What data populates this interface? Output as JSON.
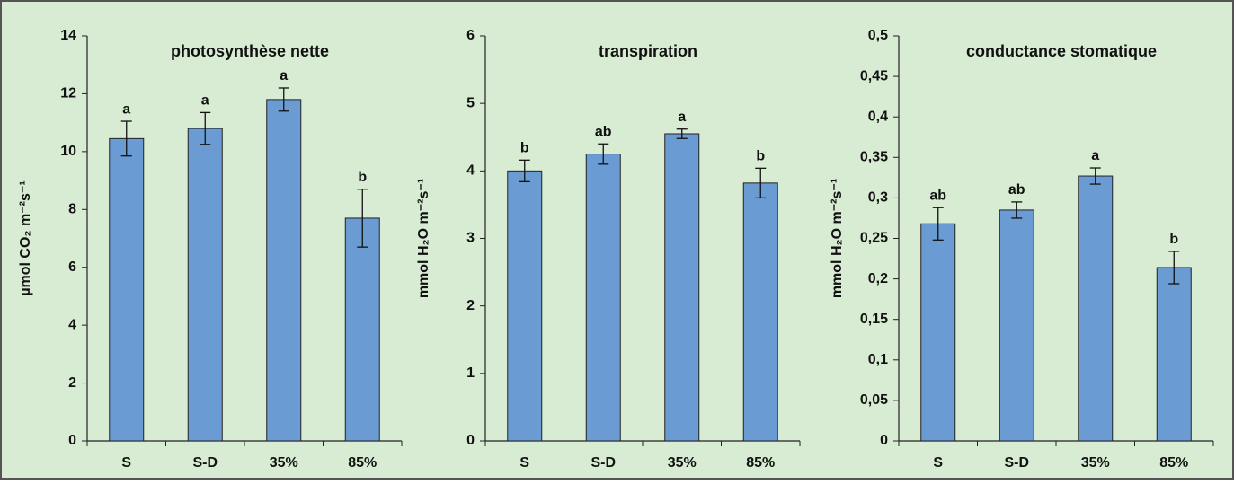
{
  "chart_data": [
    {
      "type": "bar",
      "title": "photosynthèse nette",
      "ylabel": "µmol CO₂ m⁻²s⁻¹",
      "categories": [
        "S",
        "S-D",
        "35%",
        "85%"
      ],
      "values": [
        10.45,
        10.8,
        11.8,
        7.7
      ],
      "errors": [
        0.6,
        0.55,
        0.4,
        1.0
      ],
      "letters": [
        "a",
        "a",
        "a",
        "b"
      ],
      "color": "#6a9bd3",
      "ylim": [
        0,
        14
      ],
      "yticks": [
        0,
        2,
        4,
        6,
        8,
        10,
        12,
        14
      ]
    },
    {
      "type": "bar",
      "title": "transpiration",
      "ylabel": "mmol H₂O m⁻²s⁻¹",
      "categories": [
        "S",
        "S-D",
        "35%",
        "85%"
      ],
      "values": [
        4.0,
        4.25,
        4.55,
        3.82
      ],
      "errors": [
        0.16,
        0.15,
        0.07,
        0.22
      ],
      "letters": [
        "b",
        "ab",
        "a",
        "b"
      ],
      "color": "#6a9bd3",
      "ylim": [
        0,
        6
      ],
      "yticks": [
        0,
        1,
        2,
        3,
        4,
        5,
        6
      ]
    },
    {
      "type": "bar",
      "title": "conductance stomatique",
      "ylabel": "mmol H₂O m⁻²s⁻¹",
      "categories": [
        "S",
        "S-D",
        "35%",
        "85%"
      ],
      "values": [
        0.268,
        0.285,
        0.327,
        0.214
      ],
      "errors": [
        0.02,
        0.01,
        0.01,
        0.02
      ],
      "letters": [
        "ab",
        "ab",
        "a",
        "b"
      ],
      "color": "#6a9bd3",
      "ylim": [
        0,
        0.5
      ],
      "yticks": [
        0,
        {
          "value": 0.05,
          "label": "0,05"
        },
        {
          "value": 0.1,
          "label": "0,1"
        },
        {
          "value": 0.15,
          "label": "0,15"
        },
        {
          "value": 0.2,
          "label": "0,2"
        },
        {
          "value": 0.25,
          "label": "0,25"
        },
        {
          "value": 0.3,
          "label": "0,3"
        },
        {
          "value": 0.35,
          "label": "0,35"
        },
        {
          "value": 0.4,
          "label": "0,4"
        },
        {
          "value": 0.45,
          "label": "0,45"
        },
        {
          "value": 0.5,
          "label": "0,5"
        }
      ]
    }
  ]
}
